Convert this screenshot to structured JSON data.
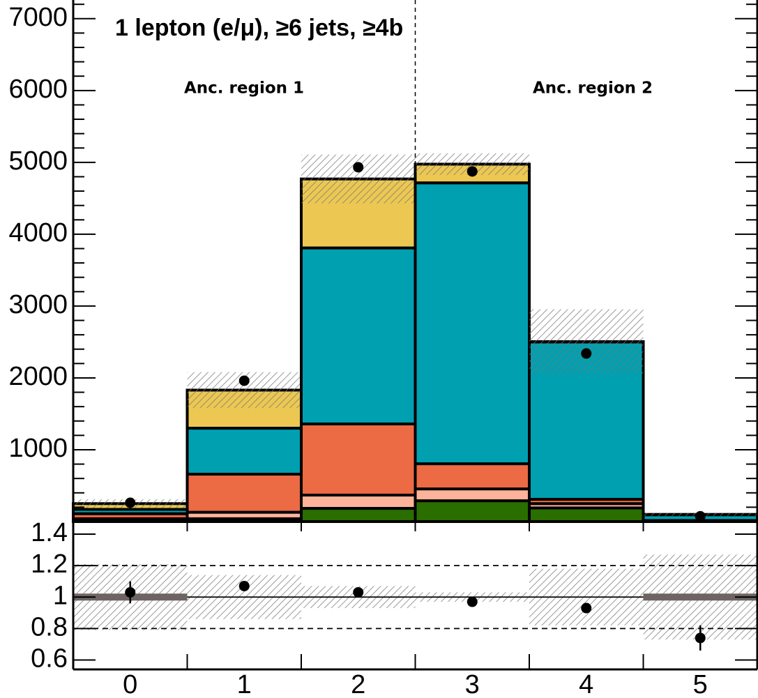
{
  "chart_data": [
    {
      "type": "stacked-histogram",
      "title": "1 lepton (e/μ), ≥6 jets, ≥4b",
      "annotations": [
        "Anc. region 1",
        "Anc. region 2"
      ],
      "bins": [
        -0.5,
        0.5,
        1.5,
        2.5,
        3.5,
        4.5,
        5.5
      ],
      "xlim": [
        -0.5,
        5.5
      ],
      "series": [
        {
          "color": "#2a6e00",
          "values": [
            10,
            40,
            184,
            290,
            190,
            5
          ]
        },
        {
          "color": "#fdb29a",
          "values": [
            30,
            90,
            185,
            165,
            60,
            5
          ]
        },
        {
          "color": "#ec6a44",
          "values": [
            70,
            530,
            990,
            350,
            60,
            5
          ]
        },
        {
          "color": "#00a0b0",
          "values": [
            60,
            640,
            2450,
            3910,
            2190,
            80
          ]
        },
        {
          "color": "#ecc852",
          "values": [
            80,
            530,
            960,
            260,
            5,
            5
          ]
        }
      ],
      "uncertainty": [
        60,
        250,
        340,
        150,
        450,
        20
      ],
      "data_points": [
        262,
        1961,
        4932,
        4874,
        2340,
        74
      ],
      "divider": 2.5,
      "ylim": [
        0,
        7260
      ],
      "yticks": [
        1000,
        2000,
        3000,
        4000,
        5000,
        6000,
        7000
      ],
      "yminorticks": [
        200,
        400,
        600,
        800,
        1200,
        1400,
        1600,
        1800,
        2200,
        2400,
        2600,
        2800,
        3200,
        3400,
        3600,
        3800,
        4200,
        4400,
        4600,
        4800,
        5200,
        5400,
        5600,
        5800,
        6200,
        6400,
        6600,
        6800,
        7200
      ]
    },
    {
      "type": "ratio",
      "xlim": [
        -0.5,
        5.5
      ],
      "xticks": [
        0,
        1,
        2,
        3,
        4,
        5
      ],
      "values": [
        1.03,
        1.07,
        1.03,
        0.97,
        0.93,
        0.74
      ],
      "errors": [
        0.07,
        0.02,
        0.01,
        0.01,
        0.02,
        0.08
      ],
      "band": [
        0.21,
        0.14,
        0.07,
        0.03,
        0.18,
        0.27
      ],
      "reference_lines": [
        0.8,
        1,
        1.2
      ],
      "reference_dashed": [
        true,
        false,
        true
      ],
      "highlight": {
        "bins": [
          0,
          5
        ],
        "value": 1
      },
      "ylim": [
        0.54,
        1.48
      ],
      "yticks": [
        0.6,
        0.8,
        1,
        1.2,
        1.4
      ]
    }
  ]
}
